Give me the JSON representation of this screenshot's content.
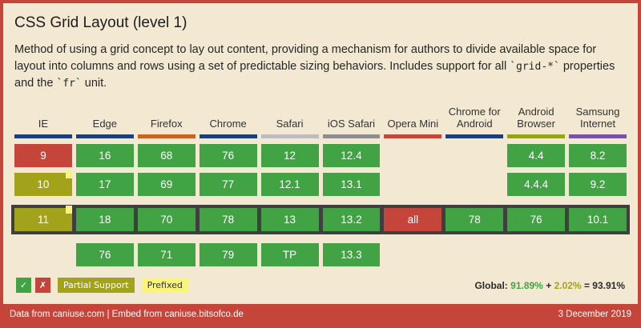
{
  "title": "CSS Grid Layout (level 1)",
  "description": {
    "part1": "Method of using a grid concept to lay out content, providing a mechanism for authors to divide available space for layout into columns and rows using a set of predictable sizing behaviors. Includes support for all ",
    "code1": "`grid-*`",
    "part2": " properties and the ",
    "code2": "`fr`",
    "part3": " unit."
  },
  "colors": {
    "bg": "#f3e9d2",
    "frame": "#c5453b",
    "supported": "#41a344",
    "unsupported": "#c5453b",
    "partial": "#a2a31b",
    "prefixed": "#f8f47c",
    "current_outline": "#3f3f3f",
    "text": "#2a2a2a"
  },
  "table": {
    "browsers": [
      {
        "name": "IE",
        "color": "#1f3f77"
      },
      {
        "name": "Edge",
        "color": "#1f3f77"
      },
      {
        "name": "Firefox",
        "color": "#c8641f"
      },
      {
        "name": "Chrome",
        "color": "#1f3f77"
      },
      {
        "name": "Safari",
        "color": "#bdbdbd"
      },
      {
        "name": "iOS Safari",
        "color": "#8e8e8e"
      },
      {
        "name": "Opera Mini",
        "color": "#c5453b"
      },
      {
        "name": "Chrome for Android",
        "color": "#1f3f77"
      },
      {
        "name": "Android Browser",
        "color": "#97a31c"
      },
      {
        "name": "Samsung Internet",
        "color": "#7a52a3"
      }
    ],
    "rows": [
      {
        "current": false,
        "cells": [
          {
            "label": "9",
            "support": "n"
          },
          {
            "label": "16",
            "support": "y"
          },
          {
            "label": "68",
            "support": "y"
          },
          {
            "label": "76",
            "support": "y"
          },
          {
            "label": "12",
            "support": "y"
          },
          {
            "label": "12.4",
            "support": "y"
          },
          {
            "label": "",
            "support": "u"
          },
          {
            "label": "",
            "support": "u"
          },
          {
            "label": "4.4",
            "support": "y"
          },
          {
            "label": "8.2",
            "support": "y"
          }
        ]
      },
      {
        "current": false,
        "cells": [
          {
            "label": "10",
            "support": "a",
            "prefixed": true
          },
          {
            "label": "17",
            "support": "y"
          },
          {
            "label": "69",
            "support": "y"
          },
          {
            "label": "77",
            "support": "y"
          },
          {
            "label": "12.1",
            "support": "y"
          },
          {
            "label": "13.1",
            "support": "y"
          },
          {
            "label": "",
            "support": "u"
          },
          {
            "label": "",
            "support": "u"
          },
          {
            "label": "4.4.4",
            "support": "y"
          },
          {
            "label": "9.2",
            "support": "y"
          }
        ]
      },
      {
        "current": true,
        "cells": [
          {
            "label": "11",
            "support": "a",
            "prefixed": true
          },
          {
            "label": "18",
            "support": "y"
          },
          {
            "label": "70",
            "support": "y"
          },
          {
            "label": "78",
            "support": "y"
          },
          {
            "label": "13",
            "support": "y"
          },
          {
            "label": "13.2",
            "support": "y"
          },
          {
            "label": "all",
            "support": "n"
          },
          {
            "label": "78",
            "support": "y"
          },
          {
            "label": "76",
            "support": "y"
          },
          {
            "label": "10.1",
            "support": "y"
          }
        ]
      },
      {
        "current": false,
        "cells": [
          {
            "label": "",
            "support": "u"
          },
          {
            "label": "76",
            "support": "y"
          },
          {
            "label": "71",
            "support": "y"
          },
          {
            "label": "79",
            "support": "y"
          },
          {
            "label": "TP",
            "support": "y"
          },
          {
            "label": "13.3",
            "support": "y"
          },
          {
            "label": "",
            "support": "u"
          },
          {
            "label": "",
            "support": "u"
          },
          {
            "label": "",
            "support": "u"
          },
          {
            "label": "",
            "support": "u"
          }
        ]
      }
    ]
  },
  "legend": {
    "check": "✓",
    "cross": "✗",
    "partial_label": "Partial Support",
    "prefixed_label": "Prefixed"
  },
  "global_stats": {
    "label": "Global:",
    "supported_pct": "91.89%",
    "plus": "+",
    "partial_pct": "2.02%",
    "equals": "=",
    "total_pct": "93.91%"
  },
  "footer": {
    "pre1": "Data from ",
    "link1": "caniuse.com",
    "mid": " | Embed from ",
    "link2": "caniuse.bitsofco.de",
    "date": "3 December 2019"
  }
}
